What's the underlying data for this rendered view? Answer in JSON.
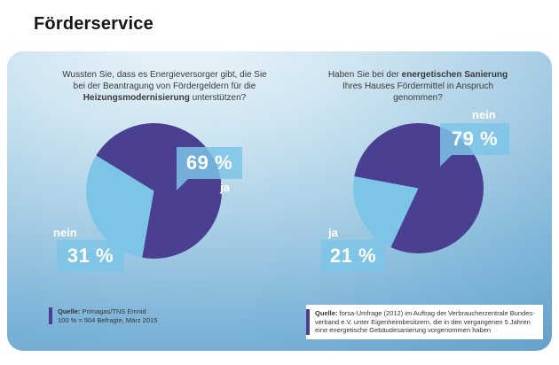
{
  "header": {
    "title": "Förderservice"
  },
  "questions": {
    "left": {
      "pre": "Wussten Sie, dass es Energieversorger gibt, die Sie bei der Beantragung von Fördergeldern für die ",
      "bold": "Heizungsmodernisierung",
      "post": " unterstützen?"
    },
    "right": {
      "pre": "Haben Sie bei der ",
      "bold": "energetischen Sanierung",
      "post": " Ihres Hauses Fördermittel in Anspruch genommen?"
    }
  },
  "chart_data": [
    {
      "type": "pie",
      "title": "Wussten Sie, dass es Energieversorger gibt, die Sie bei der Beantragung von Fördergeldern für die Heizungsmodernisierung unterstützen?",
      "slices": [
        {
          "label": "nein",
          "value": 31,
          "color": "#7cc5e7",
          "value_label": "31 %"
        },
        {
          "label": "ja",
          "value": 69,
          "color": "#4b3f92",
          "value_label": "69 %"
        }
      ],
      "start_deg": 190,
      "legend_position": "on-chart",
      "source": "Quelle: Primagas/TNS Emnid, 100 % = 504 Befragte, März 2015"
    },
    {
      "type": "pie",
      "title": "Haben Sie bei der energetischen Sanierung Ihres Hauses Fördermittel in Anspruch genommen?",
      "slices": [
        {
          "label": "ja",
          "value": 21,
          "color": "#7cc5e7",
          "value_label": "21 %"
        },
        {
          "label": "nein",
          "value": 79,
          "color": "#4b3f92",
          "value_label": "79 %"
        }
      ],
      "start_deg": 205,
      "legend_position": "on-chart",
      "source": "Quelle: forsa-Umfrage (2012) im Auftrag der Verbraucherzentrale Bundesverband e.V. unter Eigenheimbesitzern, die in den vergangenen 5 Jahren eine energetische Gebäudesanierung vorgenommen haben"
    }
  ],
  "sources": {
    "left": {
      "label": "Quelle:",
      "line1": "Primagas/TNS Emnid",
      "line2": "100 % = 504 Befragte, März 2015"
    },
    "right": {
      "label": "Quelle:",
      "line1": "forsa-Umfrage (2012) im Auftrag der Verbraucherzentrale Bundes-",
      "line2": "verband e.V. unter Eigenheimbesitzern, die in den vergangenen 5 Jahren",
      "line3": "eine energetische Gebäudesanierung vorgenommen haben"
    }
  },
  "colors": {
    "purple": "#4b3f92",
    "light_blue": "#7cc5e7",
    "text_dark": "#3a3a39"
  }
}
